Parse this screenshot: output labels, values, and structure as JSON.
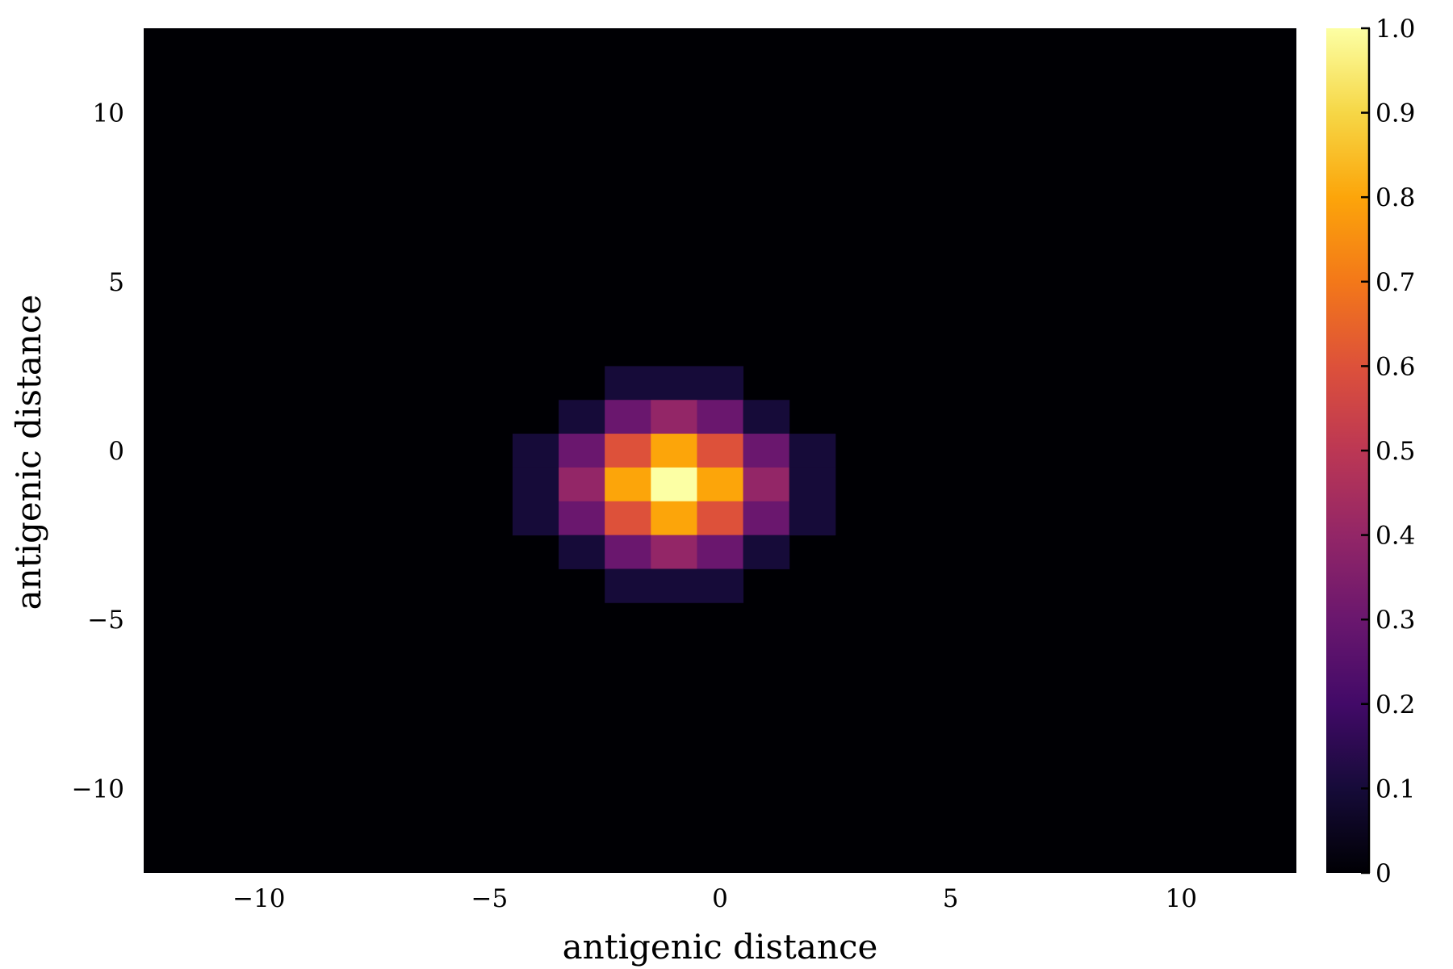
{
  "chart_data": {
    "type": "heatmap",
    "title": "",
    "xlabel": "antigenic distance",
    "ylabel": "antigenic distance",
    "xlim": [
      -12.5,
      12.5
    ],
    "ylim": [
      -12.5,
      12.5
    ],
    "x_ticks": [
      -10,
      -5,
      0,
      5,
      10
    ],
    "x_tick_labels": [
      "−10",
      "−5",
      "0",
      "5",
      "10"
    ],
    "y_ticks": [
      -10,
      -5,
      0,
      5,
      10
    ],
    "y_tick_labels": [
      "−10",
      "−5",
      "0",
      "5",
      "10"
    ],
    "cell_size": 1,
    "background_value": 0,
    "colormap": "inferno",
    "color_range": [
      0,
      1
    ],
    "colorbar_ticks": [
      0,
      0.1,
      0.2,
      0.3,
      0.4,
      0.5,
      0.6,
      0.7,
      0.8,
      0.9,
      1.0
    ],
    "colorbar_tick_labels": [
      "0",
      "0.1",
      "0.2",
      "0.3",
      "0.4",
      "0.5",
      "0.6",
      "0.7",
      "0.8",
      "0.9",
      "1.0"
    ],
    "grid": false,
    "cells": [
      {
        "x": -2,
        "y": 2,
        "value": 0.1
      },
      {
        "x": -1,
        "y": 2,
        "value": 0.1
      },
      {
        "x": 0,
        "y": 2,
        "value": 0.1
      },
      {
        "x": -3,
        "y": 1,
        "value": 0.1
      },
      {
        "x": -2,
        "y": 1,
        "value": 0.3
      },
      {
        "x": -1,
        "y": 1,
        "value": 0.4
      },
      {
        "x": 0,
        "y": 1,
        "value": 0.3
      },
      {
        "x": 1,
        "y": 1,
        "value": 0.1
      },
      {
        "x": -4,
        "y": 0,
        "value": 0.1
      },
      {
        "x": -3,
        "y": 0,
        "value": 0.3
      },
      {
        "x": -2,
        "y": 0,
        "value": 0.6
      },
      {
        "x": -1,
        "y": 0,
        "value": 0.8
      },
      {
        "x": 0,
        "y": 0,
        "value": 0.6
      },
      {
        "x": 1,
        "y": 0,
        "value": 0.3
      },
      {
        "x": 2,
        "y": 0,
        "value": 0.1
      },
      {
        "x": -4,
        "y": -1,
        "value": 0.1
      },
      {
        "x": -3,
        "y": -1,
        "value": 0.4
      },
      {
        "x": -2,
        "y": -1,
        "value": 0.8
      },
      {
        "x": -1,
        "y": -1,
        "value": 1.0
      },
      {
        "x": 0,
        "y": -1,
        "value": 0.8
      },
      {
        "x": 1,
        "y": -1,
        "value": 0.4
      },
      {
        "x": 2,
        "y": -1,
        "value": 0.1
      },
      {
        "x": -4,
        "y": -2,
        "value": 0.1
      },
      {
        "x": -3,
        "y": -2,
        "value": 0.3
      },
      {
        "x": -2,
        "y": -2,
        "value": 0.6
      },
      {
        "x": -1,
        "y": -2,
        "value": 0.8
      },
      {
        "x": 0,
        "y": -2,
        "value": 0.6
      },
      {
        "x": 1,
        "y": -2,
        "value": 0.3
      },
      {
        "x": 2,
        "y": -2,
        "value": 0.1
      },
      {
        "x": -3,
        "y": -3,
        "value": 0.1
      },
      {
        "x": -2,
        "y": -3,
        "value": 0.3
      },
      {
        "x": -1,
        "y": -3,
        "value": 0.4
      },
      {
        "x": 0,
        "y": -3,
        "value": 0.3
      },
      {
        "x": 1,
        "y": -3,
        "value": 0.1
      },
      {
        "x": -2,
        "y": -4,
        "value": 0.1
      },
      {
        "x": -1,
        "y": -4,
        "value": 0.1
      },
      {
        "x": 0,
        "y": -4,
        "value": 0.1
      }
    ]
  }
}
